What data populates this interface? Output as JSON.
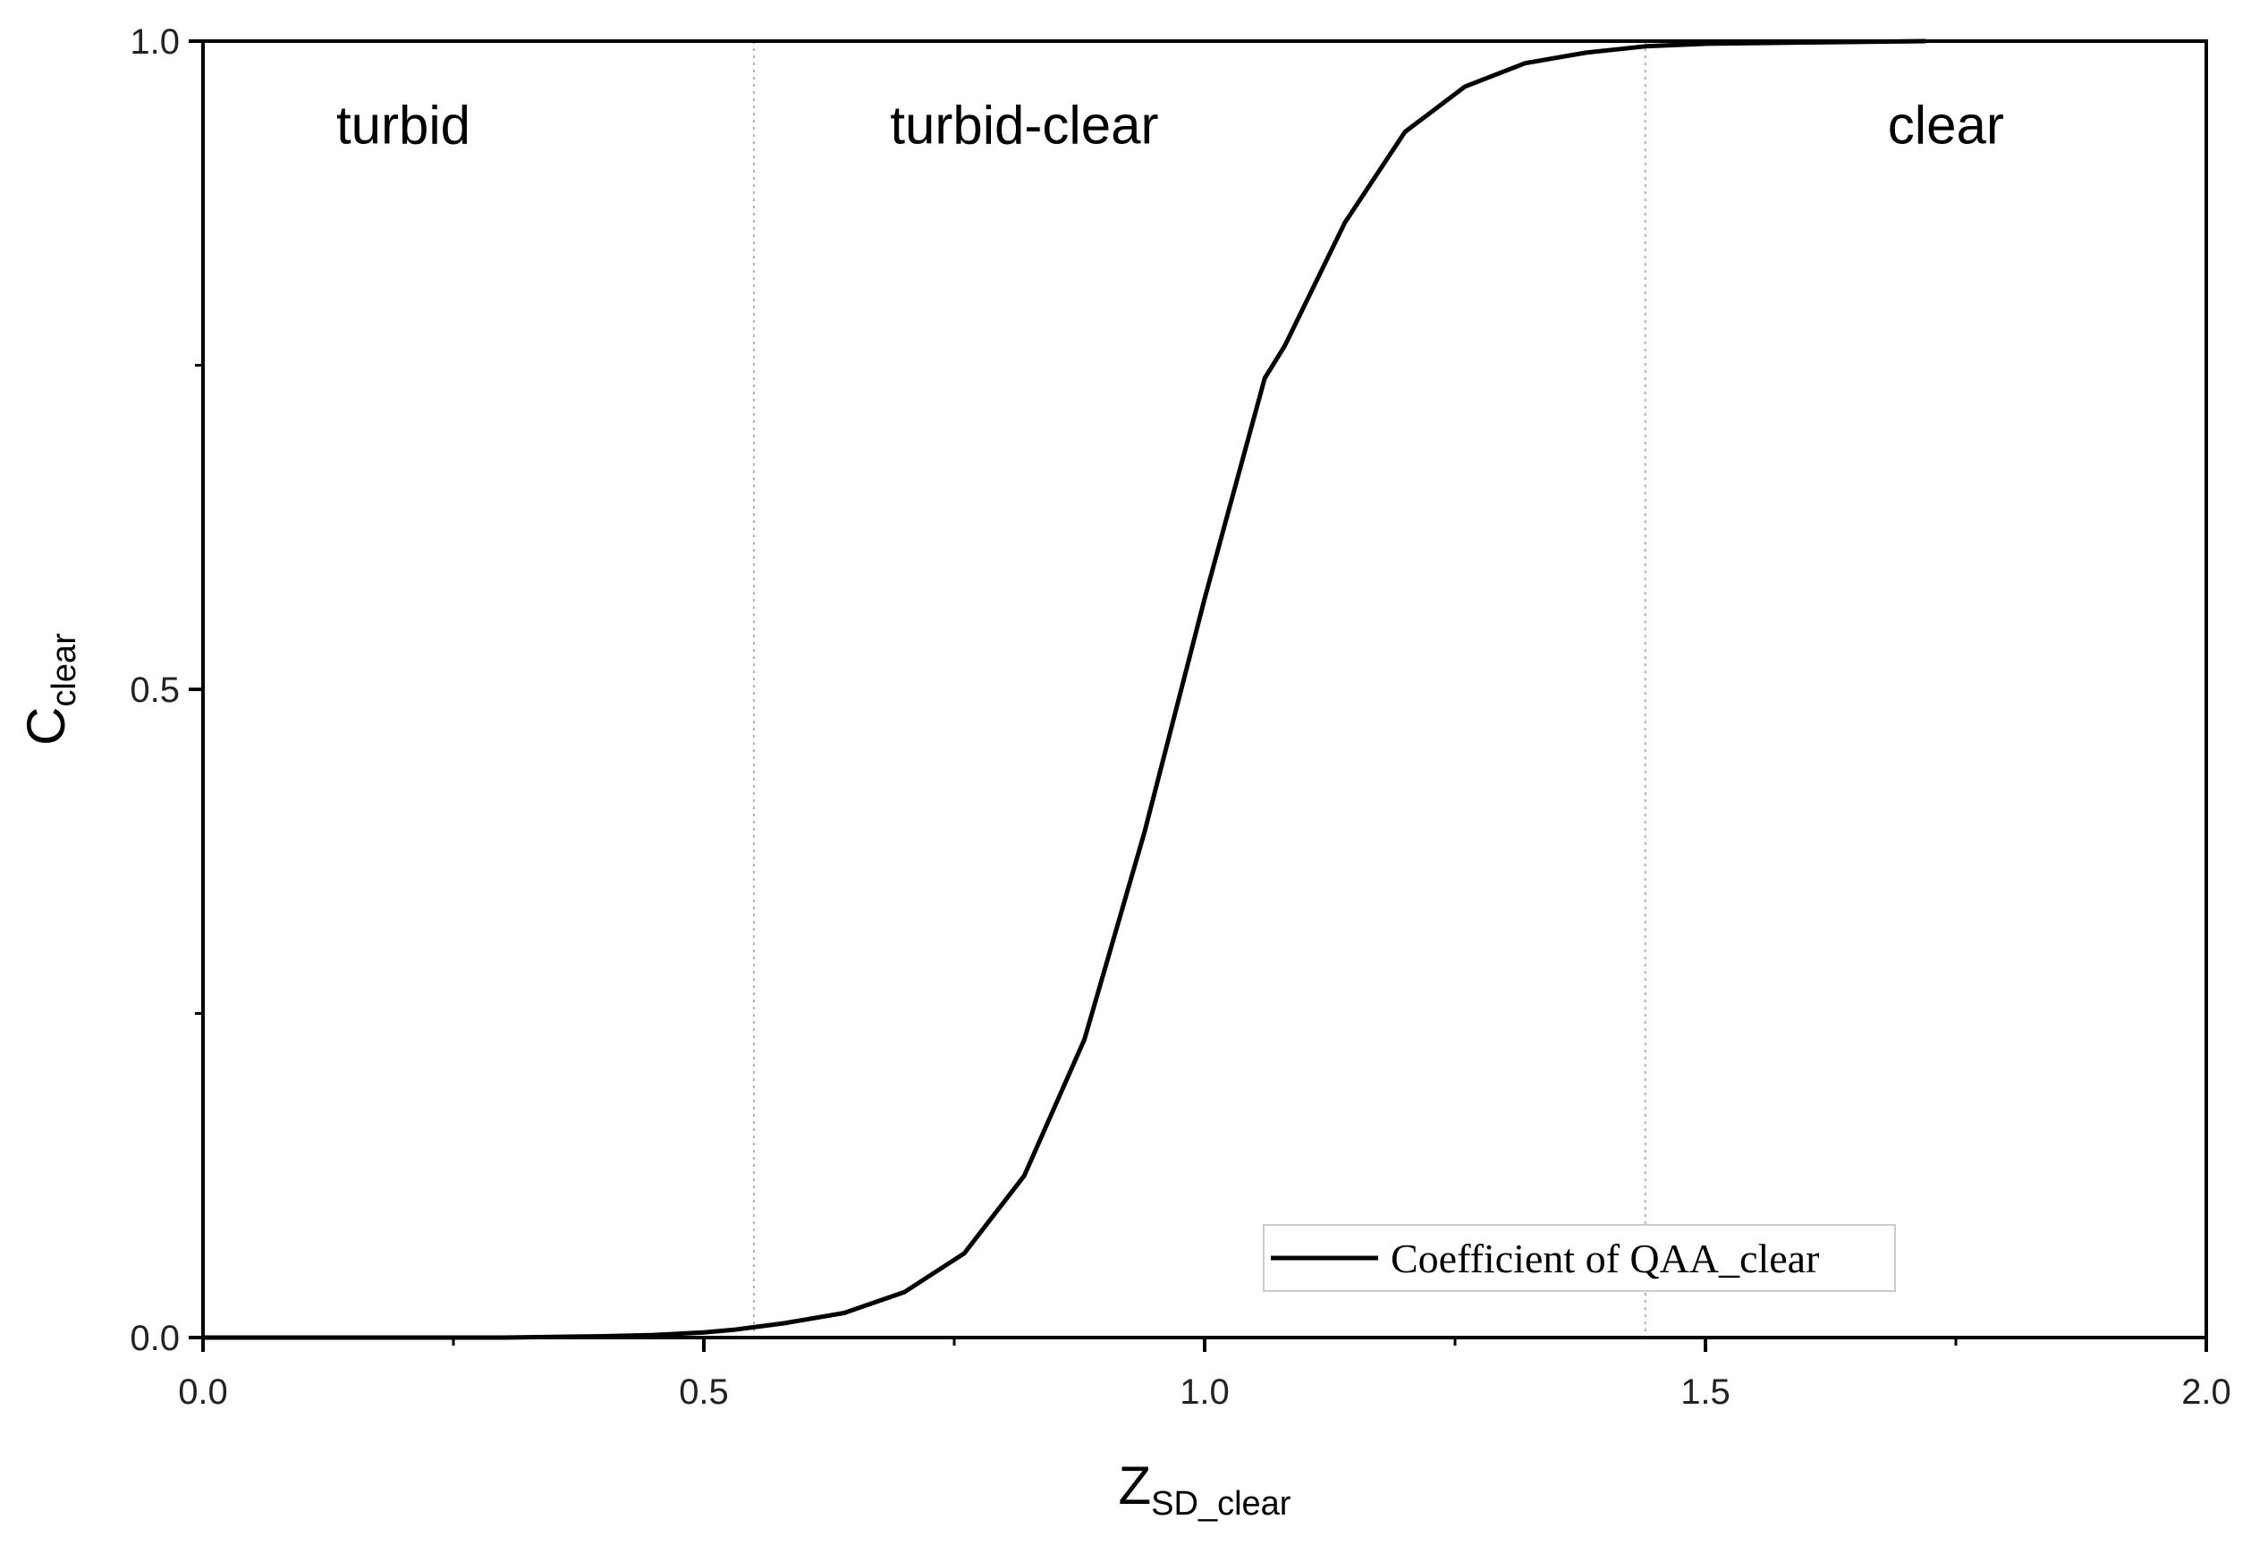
{
  "chart_data": {
    "type": "line",
    "xlabel": "Z",
    "xlabel_sub": "SD_clear",
    "ylabel": "C",
    "ylabel_sub": "clear",
    "xlim": [
      0.0,
      2.0
    ],
    "ylim": [
      0.0,
      1.0
    ],
    "x_ticks": [
      "0.0",
      "0.5",
      "1.0",
      "1.5",
      "2.0"
    ],
    "y_ticks": [
      "0.0",
      "0.5",
      "1.0"
    ],
    "x_major_values": [
      0.0,
      0.5,
      1.0,
      1.5,
      2.0
    ],
    "y_major_values": [
      0.0,
      0.5,
      1.0
    ],
    "x_minor_values": [
      0.25,
      0.75,
      1.25,
      1.75
    ],
    "y_minor_values": [
      0.25,
      0.75
    ],
    "grid": false,
    "legend_position": "bottom-right",
    "boundaries": [
      0.55,
      1.44
    ],
    "regions": [
      {
        "label": "turbid",
        "x": 0.2,
        "y": 0.935
      },
      {
        "label": "turbid-clear",
        "x": 0.82,
        "y": 0.935
      },
      {
        "label": "clear",
        "x": 1.74,
        "y": 0.935
      }
    ],
    "series": [
      {
        "name": "Coefficient of QAA_clear",
        "color": "#000000",
        "x": [
          0.0,
          0.3,
          0.4,
          0.45,
          0.5,
          0.53,
          0.55,
          0.58,
          0.64,
          0.7,
          0.76,
          0.82,
          0.88,
          0.94,
          1.0,
          1.06,
          1.08,
          1.14,
          1.2,
          1.26,
          1.32,
          1.38,
          1.44,
          1.5,
          1.6,
          1.72
        ],
        "y": [
          0.0,
          0.0,
          0.001,
          0.002,
          0.004,
          0.006,
          0.008,
          0.011,
          0.019,
          0.035,
          0.065,
          0.125,
          0.23,
          0.39,
          0.57,
          0.74,
          0.765,
          0.86,
          0.93,
          0.965,
          0.983,
          0.991,
          0.996,
          0.998,
          0.999,
          1.0
        ]
      }
    ]
  }
}
